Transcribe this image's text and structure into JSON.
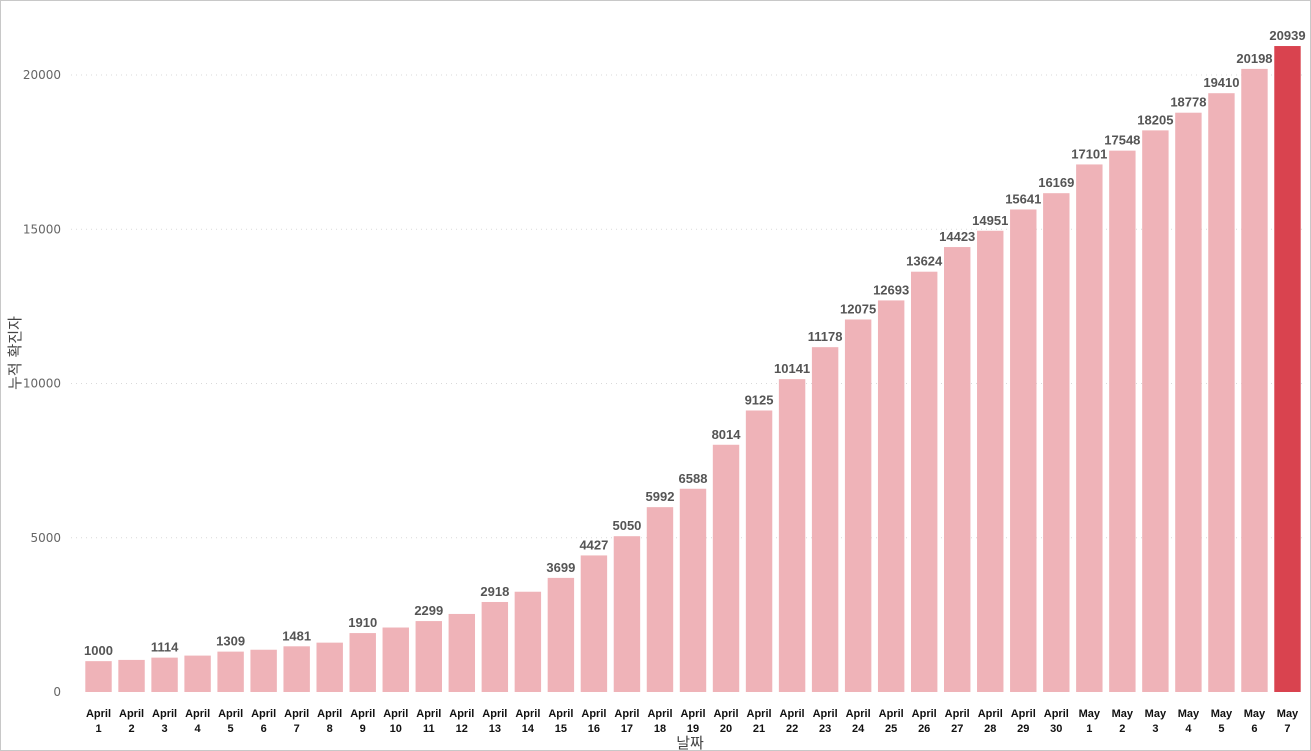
{
  "chart_data": {
    "type": "bar",
    "xlabel": "날짜",
    "ylabel": "누적 확진자",
    "ylim": [
      0,
      21200
    ],
    "yticks": [
      0,
      5000,
      10000,
      15000,
      20000
    ],
    "grid": "horizontal dotted",
    "categories": [
      [
        "April",
        "1"
      ],
      [
        "April",
        "2"
      ],
      [
        "April",
        "3"
      ],
      [
        "April",
        "4"
      ],
      [
        "April",
        "5"
      ],
      [
        "April",
        "6"
      ],
      [
        "April",
        "7"
      ],
      [
        "April",
        "8"
      ],
      [
        "April",
        "9"
      ],
      [
        "April",
        "10"
      ],
      [
        "April",
        "11"
      ],
      [
        "April",
        "12"
      ],
      [
        "April",
        "13"
      ],
      [
        "April",
        "14"
      ],
      [
        "April",
        "15"
      ],
      [
        "April",
        "16"
      ],
      [
        "April",
        "17"
      ],
      [
        "April",
        "18"
      ],
      [
        "April",
        "19"
      ],
      [
        "April",
        "20"
      ],
      [
        "April",
        "21"
      ],
      [
        "April",
        "22"
      ],
      [
        "April",
        "23"
      ],
      [
        "April",
        "24"
      ],
      [
        "April",
        "25"
      ],
      [
        "April",
        "26"
      ],
      [
        "April",
        "27"
      ],
      [
        "April",
        "28"
      ],
      [
        "April",
        "29"
      ],
      [
        "April",
        "30"
      ],
      [
        "May",
        "1"
      ],
      [
        "May",
        "2"
      ],
      [
        "May",
        "3"
      ],
      [
        "May",
        "4"
      ],
      [
        "May",
        "5"
      ],
      [
        "May",
        "6"
      ],
      [
        "May",
        "7"
      ]
    ],
    "values": [
      1000,
      1040,
      1114,
      1180,
      1309,
      1370,
      1481,
      1600,
      1910,
      2090,
      2299,
      2530,
      2918,
      3250,
      3699,
      4427,
      5050,
      5992,
      6588,
      8014,
      9125,
      10141,
      11178,
      12075,
      12693,
      13624,
      14423,
      14951,
      15641,
      16169,
      17101,
      17548,
      18205,
      18778,
      19410,
      20198,
      20939
    ],
    "data_labels": [
      "1000",
      "",
      "1114",
      "",
      "1309",
      "",
      "1481",
      "",
      "1910",
      "",
      "2299",
      "",
      "2918",
      "",
      "3699",
      "4427",
      "5050",
      "5992",
      "6588",
      "8014",
      "9125",
      "10141",
      "11178",
      "12075",
      "12693",
      "13624",
      "14423",
      "14951",
      "15641",
      "16169",
      "17101",
      "17548",
      "18205",
      "18778",
      "19410",
      "20198",
      "20939"
    ],
    "highlight_index": 36,
    "colors": {
      "bar": "#efb3b8",
      "highlight": "#d9434f"
    }
  }
}
